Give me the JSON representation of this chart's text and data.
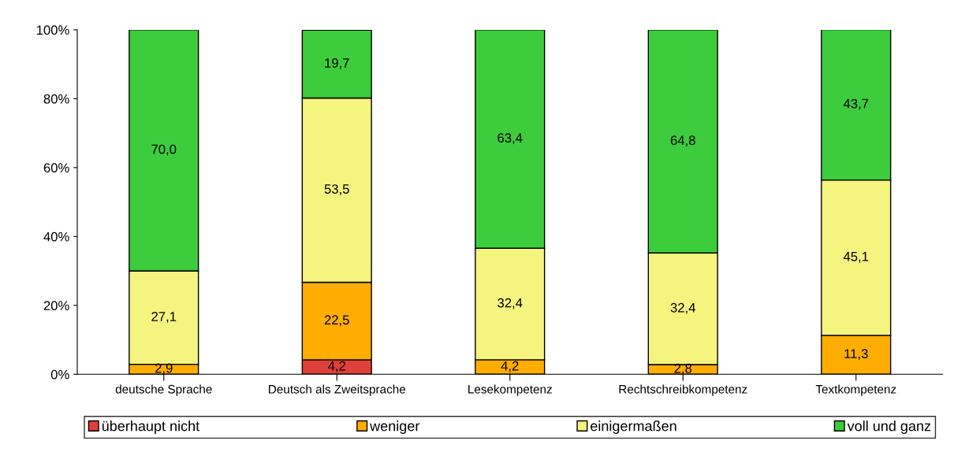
{
  "chart_data": {
    "type": "bar",
    "stacked": true,
    "categories": [
      "deutsche Sprache",
      "Deutsch als Zweitsprache",
      "Lesekompetenz",
      "Rechtschreibkompetenz",
      "Textkompetenz"
    ],
    "series": [
      {
        "name": "überhaupt nicht",
        "color": "#e0403a",
        "values": [
          0,
          4.2,
          0,
          0,
          0
        ],
        "value_labels": [
          null,
          "4,2",
          null,
          null,
          null
        ]
      },
      {
        "name": "weniger",
        "color": "#ffad00",
        "values": [
          2.9,
          22.5,
          4.2,
          2.8,
          11.3
        ],
        "value_labels": [
          "2,9",
          "22,5",
          "4,2",
          "2,8",
          "11,3"
        ]
      },
      {
        "name": "einigermaßen",
        "color": "#f4f47e",
        "values": [
          27.1,
          53.5,
          32.4,
          32.4,
          45.1
        ],
        "value_labels": [
          "27,1",
          "53,5",
          "32,4",
          "32,4",
          "45,1"
        ]
      },
      {
        "name": "voll und ganz",
        "color": "#3ccc3c",
        "values": [
          70.0,
          19.7,
          63.4,
          64.8,
          43.7
        ],
        "value_labels": [
          "70,0",
          "19,7",
          "63,4",
          "64,8",
          "43,7"
        ]
      }
    ],
    "ylim": [
      0,
      100
    ],
    "yticks": [
      {
        "value": 0,
        "label": "0%"
      },
      {
        "value": 20,
        "label": "20%"
      },
      {
        "value": 40,
        "label": "40%"
      },
      {
        "value": 60,
        "label": "60%"
      },
      {
        "value": 80,
        "label": "80%"
      },
      {
        "value": 100,
        "label": "100%"
      }
    ],
    "grid": false,
    "legend": "bottom"
  }
}
